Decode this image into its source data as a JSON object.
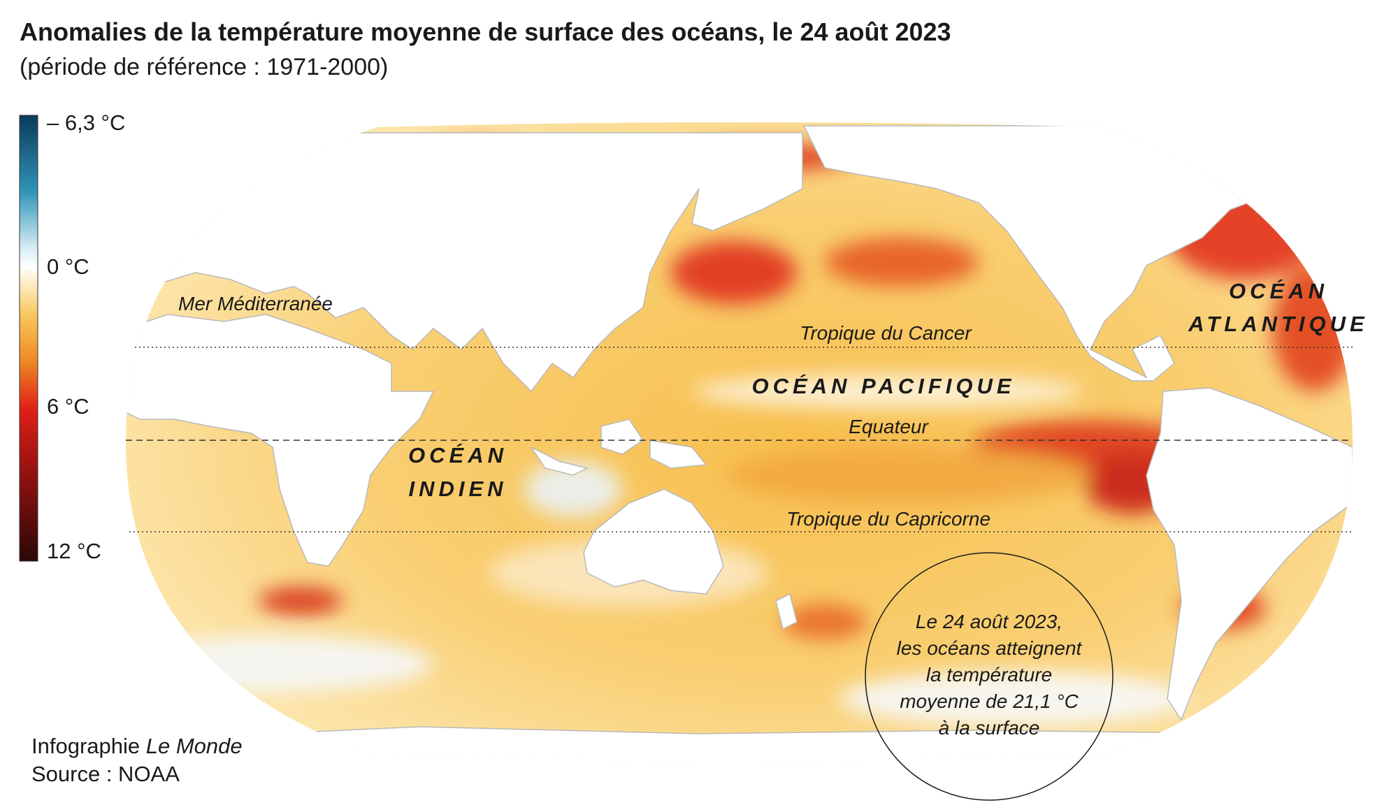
{
  "header": {
    "title": "Anomalies de la température moyenne de surface des océans, le 24 août 2023",
    "subtitle": "(période de référence : 1971-2000)"
  },
  "legend": {
    "labels": [
      "– 6,3 °C",
      "0 °C",
      "6 °C",
      "12 °C"
    ]
  },
  "map": {
    "lines": [
      "Tropique du Cancer",
      "Equateur",
      "Tropique du Capricorne"
    ],
    "seas": [
      "Mer Méditerranée"
    ],
    "oceans": [
      [
        "OCÉAN",
        "ATLANTIQUE"
      ],
      [
        "OCÉAN PACIFIQUE"
      ],
      [
        "OCÉAN",
        "INDIEN"
      ]
    ],
    "annotation": [
      "Le 24 août 2023,",
      "les océans atteignent",
      "la température",
      "moyenne de 21,1 °C",
      "à la surface"
    ]
  },
  "footer": {
    "credit_prefix": "Infographie",
    "credit_name": "Le Monde",
    "source": "Source : NOAA"
  }
}
